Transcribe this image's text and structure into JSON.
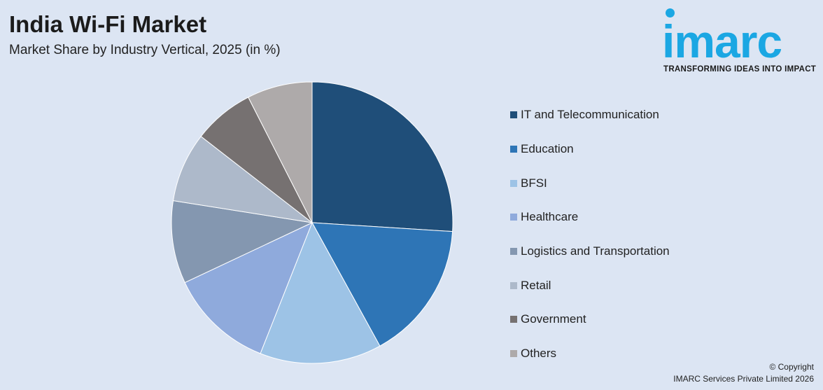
{
  "header": {
    "title": "India Wi-Fi Market",
    "subtitle": "Market Share by Industry Vertical, 2025 (in %)"
  },
  "logo": {
    "word": "imarc",
    "tagline": "TRANSFORMING IDEAS INTO IMPACT",
    "color": "#1ba7e3"
  },
  "chart_data": {
    "type": "pie",
    "title": "India Wi-Fi Market",
    "subtitle": "Market Share by Industry Vertical, 2025 (in %)",
    "start_angle": "12 o'clock, clockwise",
    "legend_position": "right",
    "categories": [
      "IT and Telecommunication",
      "Education",
      "BFSI",
      "Healthcare",
      "Logistics and Transportation",
      "Retail",
      "Government",
      "Others"
    ],
    "values": [
      26,
      16,
      14,
      12,
      9.5,
      8,
      7,
      7.5
    ],
    "colors": [
      "#1f4e79",
      "#2e75b6",
      "#9dc3e6",
      "#8faadc",
      "#8497b0",
      "#adb9ca",
      "#767171",
      "#aeaaaa"
    ]
  },
  "footer": {
    "copyright_line1": "© Copyright",
    "copyright_line2": "IMARC Services Private Limited 2026"
  }
}
